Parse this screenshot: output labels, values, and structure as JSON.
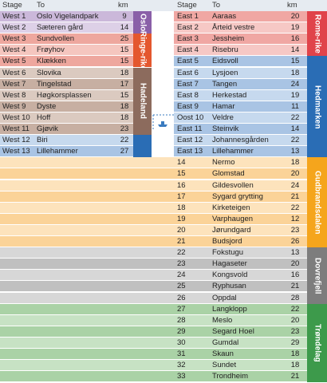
{
  "header": {
    "left": [
      "Stage",
      "To",
      "km"
    ],
    "right": [
      "Stage",
      "To",
      "km"
    ]
  },
  "west": [
    [
      "West 1",
      "Oslo Vigelandpark",
      9
    ],
    [
      "West 2",
      "Sæteren gård",
      14
    ],
    [
      "West 3",
      "Sundvollen",
      25
    ],
    [
      "West 4",
      "Frøyhov",
      15
    ],
    [
      "West 5",
      "Klækken",
      15
    ],
    [
      "West 6",
      "Slovika",
      18
    ],
    [
      "West 7",
      "Tingelstad",
      17
    ],
    [
      "West 8",
      "Høgkorsplassen",
      15
    ],
    [
      "West 9",
      "Dyste",
      18
    ],
    [
      "West 10",
      "Hoff",
      18
    ],
    [
      "West 11",
      "Gjøvik",
      23
    ],
    [
      "West 12",
      "Biri",
      22
    ],
    [
      "West 13",
      "Lillehammer",
      27
    ]
  ],
  "east": [
    [
      "East 1",
      "Aaraas",
      20
    ],
    [
      "East 2",
      "Årteid vestre",
      19
    ],
    [
      "East 3",
      "Jessheim",
      16
    ],
    [
      "East 4",
      "Risebru",
      14
    ],
    [
      "East 5",
      "Eidsvoll",
      15
    ],
    [
      "East 6",
      "Lysjoen",
      18
    ],
    [
      "East 7",
      "Tangen",
      24
    ],
    [
      "East 8",
      "Herkestad",
      19
    ],
    [
      "East 9",
      "Hamar",
      11
    ],
    [
      "Oost 10",
      "Veldre",
      22
    ],
    [
      "East 11",
      "Steinvik",
      14
    ],
    [
      "East 12",
      "Johannesgården",
      22
    ],
    [
      "East 13",
      "Lillehammer",
      13
    ],
    [
      "14",
      "Nermo",
      18
    ],
    [
      "15",
      "Glomstad",
      20
    ],
    [
      "16",
      "Gildesvollen",
      24
    ],
    [
      "17",
      "Sygard grytting",
      21
    ],
    [
      "18",
      "Kirketeigen",
      22
    ],
    [
      "19",
      "Varphaugen",
      12
    ],
    [
      "20",
      "Jørundgard",
      23
    ],
    [
      "21",
      "Budsjord",
      26
    ],
    [
      "22",
      "Fokstugu",
      13
    ],
    [
      "23",
      "Hagaseter",
      20
    ],
    [
      "24",
      "Kongsvold",
      16
    ],
    [
      "25",
      "Ryphusan",
      21
    ],
    [
      "26",
      "Oppdal",
      28
    ],
    [
      "27",
      "Langklopp",
      22
    ],
    [
      "28",
      "Meslo",
      20
    ],
    [
      "29",
      "Segard Hoel",
      23
    ],
    [
      "30",
      "Gumdal",
      29
    ],
    [
      "31",
      "Skaun",
      18
    ],
    [
      "32",
      "Sundet",
      18
    ],
    [
      "33",
      "Trondheim",
      21
    ]
  ],
  "regions": [
    {
      "label": [
        "Oslo"
      ]
    },
    {
      "label": [
        "Ringe-",
        "rike"
      ]
    },
    {
      "label": [
        "Hadeland"
      ]
    },
    {
      "label": [
        "Rome-",
        "rike"
      ]
    },
    {
      "label": [
        "Hedmarken"
      ]
    },
    {
      "label": [
        "Gudbrandsdalen"
      ]
    },
    {
      "label": [
        "Dovrefjell"
      ]
    },
    {
      "label": [
        "Trøndelag"
      ]
    }
  ]
}
